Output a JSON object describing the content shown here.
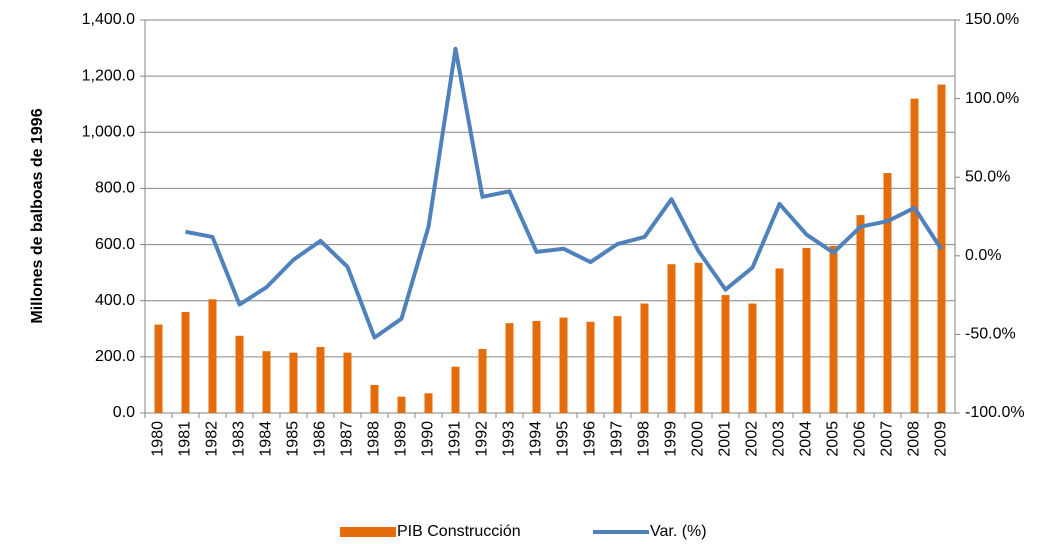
{
  "chart_data": {
    "type": "bar_line",
    "y_label": "Millones de balboas de 1996",
    "categories": [
      "1980",
      "1981",
      "1982",
      "1983",
      "1984",
      "1985",
      "1986",
      "1987",
      "1988",
      "1989",
      "1990",
      "1991",
      "1992",
      "1993",
      "1994",
      "1995",
      "1996",
      "1997",
      "1998",
      "1999",
      "2000",
      "2001",
      "2002",
      "2003",
      "2004",
      "2005",
      "2006",
      "2007",
      "2008",
      "2009"
    ],
    "series": [
      {
        "name": "PIB Construcción",
        "type": "bar",
        "color": "#e46c0a",
        "axis": "y",
        "values": [
          315,
          360,
          405,
          275,
          220,
          215,
          235,
          215,
          100,
          58,
          70,
          165,
          228,
          320,
          328,
          340,
          325,
          345,
          390,
          530,
          535,
          420,
          390,
          515,
          588,
          595,
          705,
          855,
          1120,
          1170
        ]
      },
      {
        "name": "Var. (%)",
        "type": "line",
        "color": "#4f81bd",
        "axis": "y2",
        "values": [
          null,
          15.3,
          12,
          -31,
          -20,
          -2.5,
          9.5,
          -7,
          -52,
          -40,
          18.5,
          131.7,
          37.5,
          41,
          2.5,
          4.5,
          -4,
          7.5,
          12,
          36,
          3,
          -21.5,
          -7.5,
          33,
          13.5,
          2,
          18.5,
          22,
          30.5,
          4
        ]
      }
    ],
    "ylim": [
      0,
      1400
    ],
    "yticks": [
      {
        "value": 0,
        "label": "0.0"
      },
      {
        "value": 200,
        "label": "200.0"
      },
      {
        "value": 400,
        "label": "400.0"
      },
      {
        "value": 600,
        "label": "600.0"
      },
      {
        "value": 800,
        "label": "800.0"
      },
      {
        "value": 1000,
        "label": "1,000.0"
      },
      {
        "value": 1200,
        "label": "1,200.0"
      },
      {
        "value": 1400,
        "label": "1,400.0"
      }
    ],
    "y2lim": [
      -100,
      150
    ],
    "y2ticks": [
      {
        "value": -100,
        "label": "-100.0%"
      },
      {
        "value": -50,
        "label": "-50.0%"
      },
      {
        "value": 0,
        "label": "0.0%"
      },
      {
        "value": 50,
        "label": "50.0%"
      },
      {
        "value": 100,
        "label": "100.0%"
      },
      {
        "value": 150,
        "label": "150.0%"
      }
    ],
    "grid": true,
    "legend": "bottom"
  }
}
